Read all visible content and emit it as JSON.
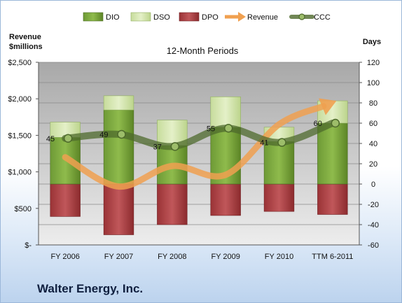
{
  "company": "Walter Energy, Inc.",
  "chart_data": {
    "type": "bar",
    "title": "12-Month Periods",
    "y_left_label": [
      "Revenue",
      "$millions"
    ],
    "y_right_label": "Days",
    "y_left_ticks": [
      "$-",
      "$500",
      "$1,000",
      "$1,500",
      "$2,000",
      "$2,500"
    ],
    "y_left_lim": [
      0,
      2500
    ],
    "y_right_ticks": [
      "-60",
      "-40",
      "-20",
      "0",
      "20",
      "40",
      "60",
      "80",
      "100",
      "120"
    ],
    "y_right_lim": [
      -60,
      120
    ],
    "grid": true,
    "legend_position": "top",
    "categories": [
      "FY 2006",
      "FY 2007",
      "FY 2008",
      "FY 2009",
      "FY 2010",
      "TTM 6-2011"
    ],
    "series": [
      {
        "name": "DIO",
        "axis": "right",
        "kind": "stacked-bar",
        "color": "#5f8a2a",
        "values": [
          46,
          73,
          38,
          56,
          42,
          60
        ]
      },
      {
        "name": "DSO",
        "axis": "right",
        "kind": "stacked-bar",
        "color": "#c9dfa0",
        "values": [
          15,
          14,
          25,
          30,
          14,
          22
        ]
      },
      {
        "name": "DPO",
        "axis": "right",
        "kind": "negative-bar",
        "color": "#a23a3d",
        "values": [
          -32,
          -50,
          -40,
          -31,
          -27,
          -30
        ]
      },
      {
        "name": "Revenue",
        "axis": "left",
        "kind": "arrow-line",
        "color": "#f0a050",
        "values": [
          1200,
          800,
          1080,
          960,
          1650,
          1950
        ]
      },
      {
        "name": "CCC",
        "axis": "right",
        "kind": "line",
        "color": "#4e6a2c",
        "values": [
          45,
          49,
          37,
          55,
          41,
          60
        ]
      }
    ],
    "data_labels": [
      "45",
      "49",
      "37",
      "55",
      "41",
      "60"
    ]
  }
}
